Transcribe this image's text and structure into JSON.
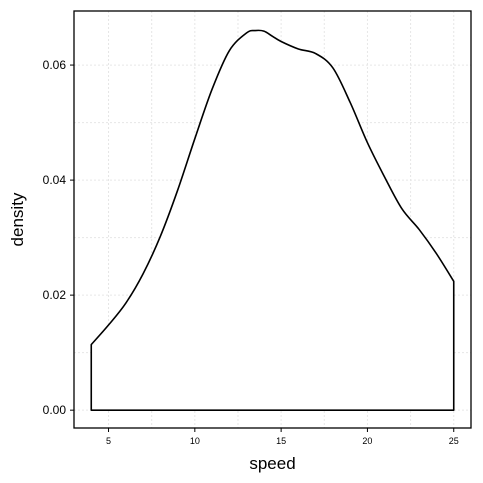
{
  "chart_data": {
    "type": "area",
    "xlabel": "speed",
    "ylabel": "density",
    "xlim": [
      3.0,
      26.0
    ],
    "ylim": [
      -0.0031,
      0.0694
    ],
    "x_ticks": [
      5,
      10,
      15,
      20,
      25
    ],
    "y_ticks": [
      0.0,
      0.02,
      0.04,
      0.06
    ],
    "x_tick_labels": [
      "5",
      "10",
      "15",
      "20",
      "25"
    ],
    "y_tick_labels": [
      "0.00",
      "0.02",
      "0.04",
      "0.06"
    ],
    "grid": true,
    "series": [
      {
        "x": [
          4.0,
          5.0,
          6.0,
          7.0,
          8.0,
          9.0,
          10.0,
          11.0,
          12.0,
          13.0,
          13.5,
          14.0,
          14.5,
          15.0,
          16.0,
          17.0,
          18.0,
          19.0,
          20.0,
          21.0,
          22.0,
          23.0,
          24.0,
          25.0
        ],
        "y": [
          0.0114,
          0.0148,
          0.0186,
          0.0237,
          0.0302,
          0.0382,
          0.0472,
          0.0558,
          0.0625,
          0.0656,
          0.066,
          0.0659,
          0.065,
          0.0641,
          0.0628,
          0.062,
          0.0595,
          0.0535,
          0.0465,
          0.0405,
          0.035,
          0.0314,
          0.0272,
          0.0224
        ]
      }
    ],
    "colors": {
      "line": "#000000",
      "fill": "#ffffff",
      "grid": "#e6e6e6",
      "frame": "#000000"
    }
  }
}
